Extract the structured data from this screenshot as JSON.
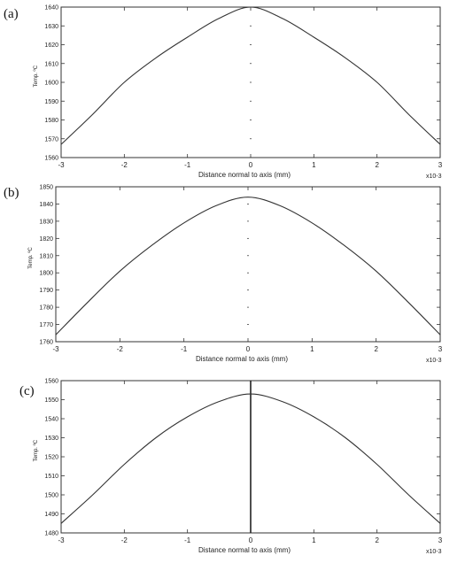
{
  "chart_data": [
    {
      "type": "line",
      "panel_label": "(a)",
      "xlabel": "Distance normal to axis (mm)",
      "ylabel": "Temp. ºC",
      "x_multiplier": "x10-3",
      "xlim": [
        -3,
        3
      ],
      "ylim": [
        1560,
        1640
      ],
      "xticks": [
        -3,
        -2,
        -1,
        0,
        1,
        2,
        3
      ],
      "yticks": [
        1560,
        1570,
        1580,
        1590,
        1600,
        1610,
        1620,
        1630,
        1640
      ],
      "center_line": "dotted",
      "series": [
        {
          "x": [
            -3,
            -2.5,
            -2,
            -1.5,
            -1,
            -0.5,
            0,
            0.5,
            1,
            1.5,
            2,
            2.5,
            3
          ],
          "y": [
            1567,
            1583,
            1600,
            1613,
            1624,
            1634,
            1640,
            1634,
            1624,
            1613,
            1600,
            1583,
            1567
          ]
        }
      ]
    },
    {
      "type": "line",
      "panel_label": "(b)",
      "xlabel": "Distance normal to axis (mm)",
      "ylabel": "Temp. ºC",
      "x_multiplier": "x10-3",
      "xlim": [
        -3,
        3
      ],
      "ylim": [
        1760,
        1850
      ],
      "xticks": [
        -3,
        -2,
        -1,
        0,
        1,
        2,
        3
      ],
      "yticks": [
        1760,
        1770,
        1780,
        1790,
        1800,
        1810,
        1820,
        1830,
        1840,
        1850
      ],
      "center_line": "dotted",
      "series": [
        {
          "x": [
            -3,
            -2.5,
            -2,
            -1.5,
            -1,
            -0.5,
            0,
            0.5,
            1,
            1.5,
            2,
            2.5,
            3
          ],
          "y": [
            1764,
            1783,
            1801,
            1816,
            1829,
            1839,
            1844,
            1839,
            1829,
            1816,
            1801,
            1783,
            1764
          ]
        }
      ]
    },
    {
      "type": "line",
      "panel_label": "(c)",
      "xlabel": "Distance normal to axis (mm)",
      "ylabel": "Temp. ºC",
      "x_multiplier": "x10-3",
      "xlim": [
        -3,
        3
      ],
      "ylim": [
        1480,
        1560
      ],
      "xticks": [
        -3,
        -2,
        -1,
        0,
        1,
        2,
        3
      ],
      "yticks": [
        1480,
        1490,
        1500,
        1510,
        1520,
        1530,
        1540,
        1550,
        1560
      ],
      "center_line": "solid",
      "series": [
        {
          "x": [
            -3,
            -2.5,
            -2,
            -1.5,
            -1,
            -0.5,
            0,
            0.5,
            1,
            1.5,
            2,
            2.5,
            3
          ],
          "y": [
            1485,
            1500,
            1516,
            1530,
            1541,
            1549,
            1553,
            1549,
            1541,
            1530,
            1516,
            1500,
            1485
          ]
        }
      ]
    }
  ]
}
